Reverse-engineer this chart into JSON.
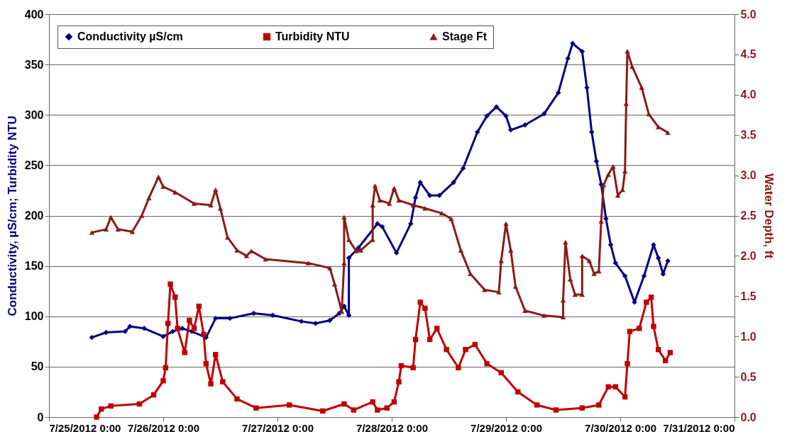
{
  "chart_data": {
    "type": "line",
    "ylabel": "Conductivity, µS/cm; Turbidity NTU",
    "y2label": "Water Depth, ft",
    "xlim": [
      "2012-07-25T00:00",
      "2012-07-31T00:00"
    ],
    "xticks": [
      {
        "value": "2012-07-25T00:00",
        "label": "7/25/2012 0:00"
      },
      {
        "value": "2012-07-26T00:00",
        "label": "7/26/2012 0:00"
      },
      {
        "value": "2012-07-27T00:00",
        "label": "7/27/2012 0:00"
      },
      {
        "value": "2012-07-28T00:00",
        "label": "7/28/2012 0:00"
      },
      {
        "value": "2012-07-29T00:00",
        "label": "7/29/2012 0:00"
      },
      {
        "value": "2012-07-30T00:00",
        "label": "7/30/2012 0:00"
      },
      {
        "value": "2012-07-31T00:00",
        "label": "7/31/2012 0:00"
      }
    ],
    "ylim": [
      0,
      400
    ],
    "yticks": [
      0,
      50,
      100,
      150,
      200,
      250,
      300,
      350,
      400
    ],
    "y2lim": [
      0,
      5
    ],
    "y2ticks": [
      {
        "value": 0,
        "label": "0.0"
      },
      {
        "value": 0.5,
        "label": "0.5"
      },
      {
        "value": 1,
        "label": "1.0"
      },
      {
        "value": 1.5,
        "label": "1.5"
      },
      {
        "value": 2,
        "label": "2.0"
      },
      {
        "value": 2.5,
        "label": "2.5"
      },
      {
        "value": 3,
        "label": "3.0"
      },
      {
        "value": 3.5,
        "label": "3.5"
      },
      {
        "value": 4,
        "label": "4.0"
      },
      {
        "value": 4.5,
        "label": "4.5"
      },
      {
        "value": 5,
        "label": "5.0"
      }
    ],
    "grid": "y",
    "legend": "top",
    "series": [
      {
        "name": "Conductivity µS/cm",
        "color": "#000080",
        "marker": "diamond",
        "x": [
          "2012-07-25T09:00",
          "2012-07-25T12:00",
          "2012-07-25T16:00",
          "2012-07-25T17:00",
          "2012-07-25T20:00",
          "2012-07-26T00:00",
          "2012-07-26T02:00",
          "2012-07-26T04:00",
          "2012-07-26T06:00",
          "2012-07-26T09:00",
          "2012-07-26T11:00",
          "2012-07-26T14:00",
          "2012-07-26T19:00",
          "2012-07-26T23:00",
          "2012-07-27T05:00",
          "2012-07-27T08:00",
          "2012-07-27T11:00",
          "2012-07-27T13:00",
          "2012-07-27T14:00",
          "2012-07-27T15:00",
          "2012-07-27T15:00",
          "2012-07-27T17:00",
          "2012-07-27T21:00",
          "2012-07-27T22:00",
          "2012-07-28T01:00",
          "2012-07-28T04:00",
          "2012-07-28T05:00",
          "2012-07-28T06:00",
          "2012-07-28T08:00",
          "2012-07-28T10:00",
          "2012-07-28T13:00",
          "2012-07-28T15:00",
          "2012-07-28T18:00",
          "2012-07-28T20:00",
          "2012-07-28T22:00",
          "2012-07-29T00:00",
          "2012-07-29T01:00",
          "2012-07-29T04:00",
          "2012-07-29T08:00",
          "2012-07-29T11:00",
          "2012-07-29T13:00",
          "2012-07-29T14:00",
          "2012-07-29T16:00",
          "2012-07-29T17:00",
          "2012-07-29T18:00",
          "2012-07-29T19:00",
          "2012-07-29T20:00",
          "2012-07-29T21:00",
          "2012-07-29T22:00",
          "2012-07-29T23:00",
          "2012-07-30T01:00",
          "2012-07-30T03:00",
          "2012-07-30T05:00",
          "2012-07-30T07:00",
          "2012-07-30T08:00",
          "2012-07-30T09:00",
          "2012-07-30T10:00"
        ],
        "values": [
          79,
          84,
          85,
          90,
          88,
          80,
          85,
          88,
          85,
          79,
          98,
          98,
          103,
          101,
          95,
          93,
          96,
          103,
          110,
          101,
          158,
          168,
          192,
          189,
          163,
          192,
          218,
          233,
          220,
          220,
          233,
          247,
          283,
          299,
          308,
          299,
          285,
          290,
          301,
          322,
          356,
          371,
          363,
          327,
          283,
          254,
          231,
          197,
          171,
          153,
          140,
          114,
          140,
          171,
          158,
          142,
          155
        ]
      },
      {
        "name": "Turbidity NTU",
        "color": "#c00000",
        "marker": "square",
        "x": [
          "2012-07-25T10:00",
          "2012-07-25T11:00",
          "2012-07-25T13:00",
          "2012-07-25T19:00",
          "2012-07-25T22:00",
          "2012-07-26T00:00",
          "2012-07-26T00:30",
          "2012-07-26T01:00",
          "2012-07-26T01:30",
          "2012-07-26T02:30",
          "2012-07-26T03:00",
          "2012-07-26T04:30",
          "2012-07-26T05:30",
          "2012-07-26T06:30",
          "2012-07-26T07:30",
          "2012-07-26T08:30",
          "2012-07-26T09:00",
          "2012-07-26T10:00",
          "2012-07-26T11:00",
          "2012-07-26T12:30",
          "2012-07-26T15:30",
          "2012-07-26T19:30",
          "2012-07-27T02:30",
          "2012-07-27T09:30",
          "2012-07-27T14:00",
          "2012-07-27T16:00",
          "2012-07-27T20:00",
          "2012-07-27T21:00",
          "2012-07-27T23:00",
          "2012-07-28T00:30",
          "2012-07-28T01:30",
          "2012-07-28T02:00",
          "2012-07-28T04:30",
          "2012-07-28T05:00",
          "2012-07-28T06:00",
          "2012-07-28T07:00",
          "2012-07-28T08:00",
          "2012-07-28T09:30",
          "2012-07-28T11:30",
          "2012-07-28T14:00",
          "2012-07-28T15:30",
          "2012-07-28T17:30",
          "2012-07-28T20:00",
          "2012-07-28T23:00",
          "2012-07-29T02:30",
          "2012-07-29T06:30",
          "2012-07-29T10:30",
          "2012-07-29T16:00",
          "2012-07-29T19:30",
          "2012-07-29T21:30",
          "2012-07-29T23:00",
          "2012-07-30T01:00",
          "2012-07-30T01:30",
          "2012-07-30T02:00",
          "2012-07-30T04:00",
          "2012-07-30T05:30",
          "2012-07-30T06:30",
          "2012-07-30T07:00",
          "2012-07-30T08:00",
          "2012-07-30T09:30",
          "2012-07-30T10:30"
        ],
        "values": [
          0,
          8,
          11,
          13,
          22,
          36,
          49,
          93,
          132,
          119,
          88,
          64,
          96,
          88,
          110,
          82,
          53,
          33,
          62,
          35,
          18,
          9,
          12,
          6,
          13,
          7,
          15,
          7,
          9,
          15,
          35,
          51,
          49,
          77,
          114,
          108,
          77,
          88,
          67,
          49,
          67,
          72,
          53,
          44,
          25,
          12,
          7,
          9,
          12,
          30,
          30,
          20,
          53,
          85,
          88,
          114,
          119,
          90,
          67,
          56,
          64
        ]
      },
      {
        "name": "Stage Ft",
        "color": "#8b1a1a",
        "marker": "triangle",
        "axis": "y2",
        "x": [
          "2012-07-25T09:00",
          "2012-07-25T12:00",
          "2012-07-25T13:00",
          "2012-07-25T14:30",
          "2012-07-25T17:30",
          "2012-07-25T19:30",
          "2012-07-25T21:00",
          "2012-07-25T23:00",
          "2012-07-26T00:00",
          "2012-07-26T02:30",
          "2012-07-26T06:30",
          "2012-07-26T10:00",
          "2012-07-26T11:00",
          "2012-07-26T12:00",
          "2012-07-26T13:30",
          "2012-07-26T15:30",
          "2012-07-26T17:30",
          "2012-07-26T18:30",
          "2012-07-26T21:30",
          "2012-07-27T06:30",
          "2012-07-27T11:00",
          "2012-07-27T12:00",
          "2012-07-27T13:30",
          "2012-07-27T14:00",
          "2012-07-27T14:00",
          "2012-07-27T15:00",
          "2012-07-27T16:30",
          "2012-07-27T17:30",
          "2012-07-27T20:00",
          "2012-07-27T20:00",
          "2012-07-27T20:30",
          "2012-07-27T21:30",
          "2012-07-27T23:30",
          "2012-07-28T00:30",
          "2012-07-28T01:30",
          "2012-07-28T04:30",
          "2012-07-28T07:00",
          "2012-07-28T10:30",
          "2012-07-28T12:30",
          "2012-07-28T14:30",
          "2012-07-28T16:30",
          "2012-07-28T19:30",
          "2012-07-28T22:30",
          "2012-07-28T23:00",
          "2012-07-29T00:00",
          "2012-07-29T01:00",
          "2012-07-29T02:00",
          "2012-07-29T04:00",
          "2012-07-29T08:00",
          "2012-07-29T12:00",
          "2012-07-29T12:00",
          "2012-07-29T12:30",
          "2012-07-29T13:30",
          "2012-07-29T14:30",
          "2012-07-29T16:00",
          "2012-07-29T16:00",
          "2012-07-29T17:30",
          "2012-07-29T18:30",
          "2012-07-29T19:30",
          "2012-07-29T20:00",
          "2012-07-29T20:30",
          "2012-07-29T21:30",
          "2012-07-29T22:30",
          "2012-07-29T23:30",
          "2012-07-30T00:30",
          "2012-07-30T01:00",
          "2012-07-30T01:15",
          "2012-07-30T01:30",
          "2012-07-30T02:30",
          "2012-07-30T04:30",
          "2012-07-30T06:00",
          "2012-07-30T08:00",
          "2012-07-30T10:00"
        ],
        "values": [
          2.29,
          2.33,
          2.48,
          2.33,
          2.3,
          2.5,
          2.72,
          2.98,
          2.86,
          2.79,
          2.65,
          2.63,
          2.82,
          2.59,
          2.23,
          2.07,
          2.0,
          2.06,
          1.96,
          1.91,
          1.85,
          1.65,
          1.31,
          1.91,
          2.48,
          2.2,
          2.06,
          2.07,
          2.2,
          2.63,
          2.87,
          2.69,
          2.65,
          2.84,
          2.69,
          2.63,
          2.59,
          2.53,
          2.46,
          2.07,
          1.78,
          1.58,
          1.55,
          1.94,
          2.4,
          2.07,
          1.62,
          1.32,
          1.26,
          1.24,
          1.45,
          2.17,
          1.71,
          1.52,
          1.52,
          2.0,
          1.94,
          1.78,
          1.81,
          2.43,
          2.88,
          3.01,
          3.11,
          2.75,
          2.82,
          3.05,
          3.89,
          4.54,
          4.35,
          4.09,
          3.76,
          3.6,
          3.53
        ]
      }
    ]
  }
}
